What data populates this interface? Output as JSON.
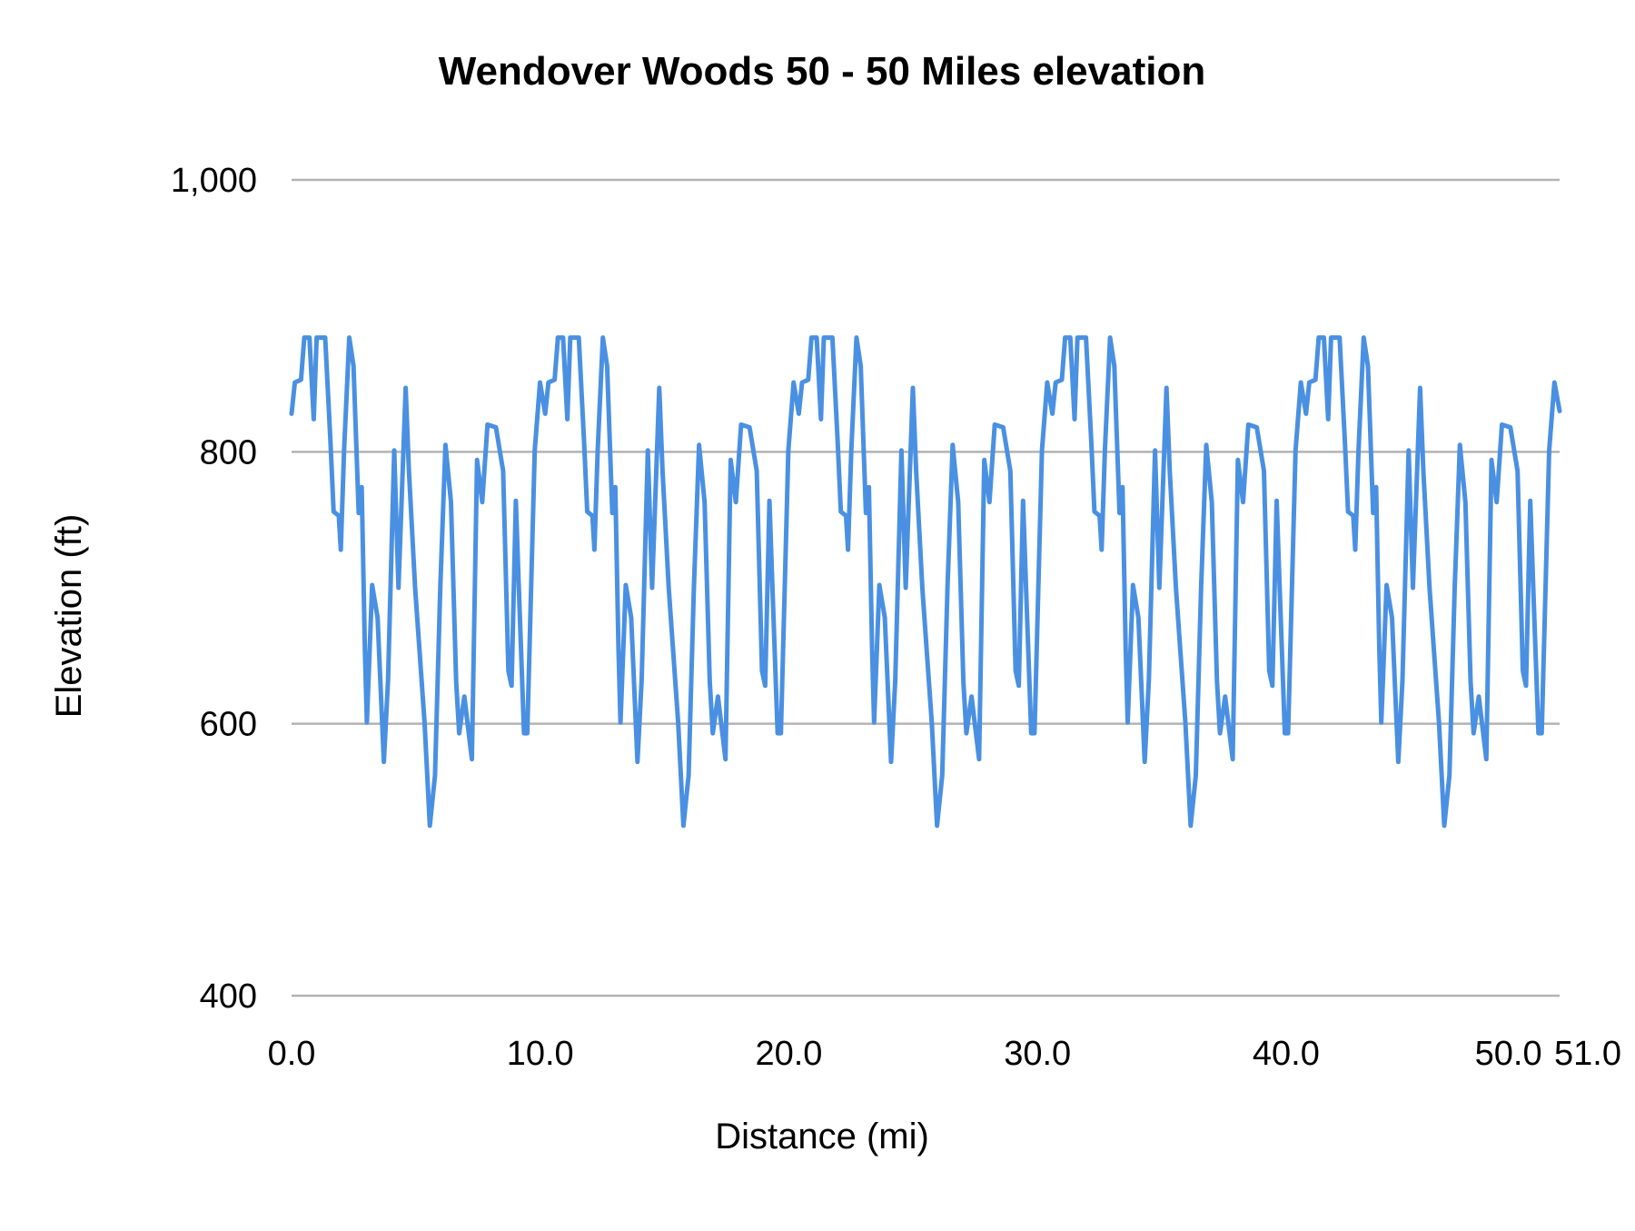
{
  "chart_data": {
    "type": "line",
    "title": "Wendover Woods 50 - 50 Miles elevation",
    "xlabel": "Distance (mi)",
    "ylabel": "Elevation (ft)",
    "xlim": [
      0,
      51
    ],
    "ylim": [
      400,
      1000
    ],
    "x_ticks": [
      "0.0",
      "10.0",
      "20.0",
      "30.0",
      "40.0",
      "50.0",
      "51.0"
    ],
    "x_tick_values": [
      0,
      10,
      20,
      30,
      40,
      50,
      51
    ],
    "y_ticks": [
      "400",
      "600",
      "800",
      "1,000"
    ],
    "y_tick_values": [
      400,
      600,
      800,
      1000
    ],
    "grid": "horizontal",
    "legend": "none",
    "line_color": "#4a90e2",
    "grid_color": "#b3b3b3",
    "series": [
      {
        "x": [
          0.0,
          0.13,
          0.38,
          0.51,
          0.72,
          0.89,
          1.01,
          1.35,
          1.56,
          1.69,
          1.9,
          1.98,
          2.11,
          2.32,
          2.49,
          2.7,
          2.82,
          2.95,
          3.03,
          3.24,
          3.46,
          3.71,
          3.88,
          4.13,
          4.3,
          4.59,
          4.72,
          4.97,
          5.35,
          5.56,
          5.77,
          5.98,
          6.19,
          6.41,
          6.62,
          6.74,
          6.95,
          7.25,
          7.46,
          7.67,
          7.88,
          8.22,
          8.51,
          8.72,
          8.85,
          9.02,
          9.14,
          9.35,
          9.48,
          9.78,
          9.99,
          10.2,
          10.33,
          10.58,
          10.71,
          10.92,
          11.09,
          11.21,
          11.55,
          11.76,
          11.89,
          12.1,
          12.18,
          12.31,
          12.52,
          12.69,
          12.9,
          13.02,
          13.15,
          13.23,
          13.44,
          13.66,
          13.91,
          14.08,
          14.33,
          14.5,
          14.79,
          14.92,
          15.17,
          15.55,
          15.76,
          15.97,
          16.18,
          16.39,
          16.61,
          16.82,
          16.94,
          17.15,
          17.45,
          17.66,
          17.87,
          18.08,
          18.42,
          18.71,
          18.92,
          19.05,
          19.22,
          19.34,
          19.55,
          19.68,
          19.98,
          20.19,
          20.4,
          20.53,
          20.78,
          20.91,
          21.12,
          21.29,
          21.41,
          21.75,
          21.96,
          22.09,
          22.3,
          22.38,
          22.51,
          22.72,
          22.89,
          23.1,
          23.22,
          23.35,
          23.43,
          23.64,
          23.86,
          24.11,
          24.28,
          24.53,
          24.7,
          24.99,
          25.12,
          25.37,
          25.75,
          25.96,
          26.17,
          26.38,
          26.59,
          26.81,
          27.02,
          27.14,
          27.35,
          27.65,
          27.86,
          28.07,
          28.28,
          28.62,
          28.91,
          29.12,
          29.25,
          29.42,
          29.54,
          29.75,
          29.88,
          30.18,
          30.39,
          30.6,
          30.73,
          30.98,
          31.11,
          31.32,
          31.49,
          31.61,
          31.95,
          32.16,
          32.29,
          32.5,
          32.58,
          32.71,
          32.92,
          33.09,
          33.3,
          33.42,
          33.55,
          33.63,
          33.84,
          34.06,
          34.31,
          34.48,
          34.73,
          34.9,
          35.19,
          35.32,
          35.57,
          35.95,
          36.16,
          36.37,
          36.58,
          36.79,
          37.01,
          37.22,
          37.34,
          37.55,
          37.85,
          38.06,
          38.27,
          38.48,
          38.82,
          39.11,
          39.32,
          39.45,
          39.62,
          39.74,
          39.95,
          40.08,
          40.38,
          40.59,
          40.8,
          40.93,
          41.18,
          41.31,
          41.52,
          41.69,
          41.81,
          42.15,
          42.36,
          42.49,
          42.7,
          42.78,
          42.91,
          43.12,
          43.29,
          43.5,
          43.62,
          43.75,
          43.83,
          44.04,
          44.26,
          44.51,
          44.68,
          44.93,
          45.1,
          45.39,
          45.52,
          45.77,
          46.15,
          46.36,
          46.57,
          46.78,
          46.99,
          47.21,
          47.42,
          47.54,
          47.75,
          48.05,
          48.26,
          48.47,
          48.68,
          49.02,
          49.31,
          49.52,
          49.65,
          49.82,
          49.94,
          50.15,
          50.28,
          50.58,
          50.79,
          51.0
        ],
        "y": [
          828,
          851,
          853,
          884,
          884,
          824,
          884,
          884,
          809,
          756,
          753,
          728,
          801,
          884,
          863,
          755,
          774,
          655,
          601,
          702,
          678,
          572,
          632,
          801,
          700,
          847,
          786,
          700,
          601,
          525,
          562,
          700,
          805,
          763,
          631,
          593,
          620,
          574,
          794,
          763,
          820,
          818,
          786,
          639,
          628,
          764,
          700,
          593,
          593,
          801,
          851,
          828,
          851,
          853,
          884,
          884,
          824,
          884,
          884,
          809,
          756,
          753,
          728,
          801,
          884,
          863,
          755,
          774,
          655,
          601,
          702,
          678,
          572,
          632,
          801,
          700,
          847,
          786,
          700,
          601,
          525,
          562,
          700,
          805,
          763,
          631,
          593,
          620,
          574,
          794,
          763,
          820,
          818,
          786,
          639,
          628,
          764,
          700,
          593,
          593,
          801,
          851,
          828,
          851,
          853,
          884,
          884,
          824,
          884,
          884,
          809,
          756,
          753,
          728,
          801,
          884,
          863,
          755,
          774,
          655,
          601,
          702,
          678,
          572,
          632,
          801,
          700,
          847,
          786,
          700,
          601,
          525,
          562,
          700,
          805,
          763,
          631,
          593,
          620,
          574,
          794,
          763,
          820,
          818,
          786,
          639,
          628,
          764,
          700,
          593,
          593,
          801,
          851,
          828,
          851,
          853,
          884,
          884,
          824,
          884,
          884,
          809,
          756,
          753,
          728,
          801,
          884,
          863,
          755,
          774,
          655,
          601,
          702,
          678,
          572,
          632,
          801,
          700,
          847,
          786,
          700,
          601,
          525,
          562,
          700,
          805,
          763,
          631,
          593,
          620,
          574,
          794,
          763,
          820,
          818,
          786,
          639,
          628,
          764,
          700,
          593,
          593,
          801,
          851,
          828,
          851,
          853,
          884,
          884,
          824,
          884,
          884,
          809,
          756,
          753,
          728,
          801,
          884,
          863,
          755,
          774,
          655,
          601,
          702,
          678,
          572,
          632,
          801,
          700,
          847,
          786,
          700,
          601,
          525,
          562,
          700,
          805,
          763,
          631,
          593,
          620,
          574,
          794,
          763,
          820,
          818,
          786,
          639,
          628,
          764,
          700,
          593,
          593,
          801,
          851,
          830
        ]
      }
    ]
  }
}
